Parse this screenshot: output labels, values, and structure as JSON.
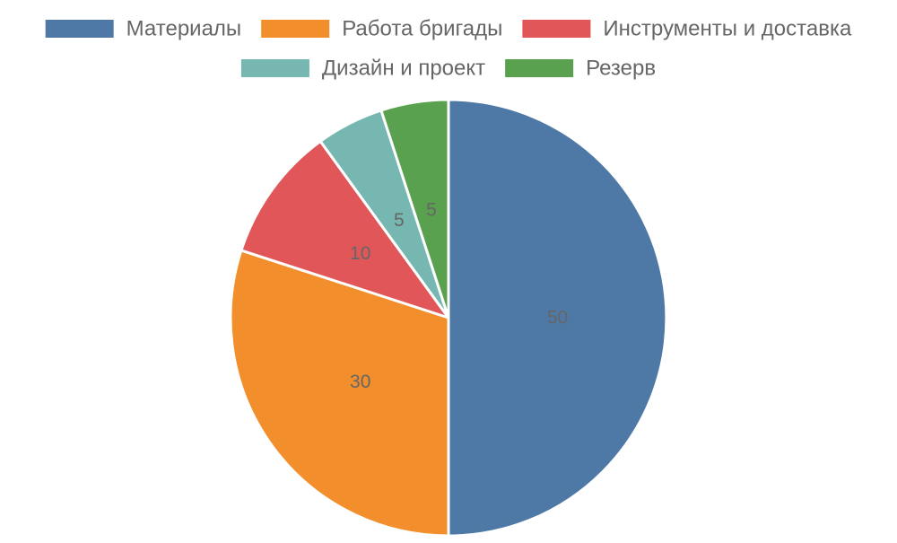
{
  "chart_data": {
    "type": "pie",
    "title": "",
    "legend_position": "top",
    "slices": [
      {
        "label": "Материалы",
        "value": 50,
        "value_label": "50",
        "color": "#4e79a7"
      },
      {
        "label": "Работа бригады",
        "value": 30,
        "value_label": "30",
        "color": "#f28e2b"
      },
      {
        "label": "Инструменты и доставка",
        "value": 10,
        "value_label": "10",
        "color": "#e15759"
      },
      {
        "label": "Дизайн и проект",
        "value": 5,
        "value_label": "5",
        "color": "#76b7b2"
      },
      {
        "label": "Резерв",
        "value": 5,
        "value_label": "5",
        "color": "#59a14f"
      }
    ]
  }
}
